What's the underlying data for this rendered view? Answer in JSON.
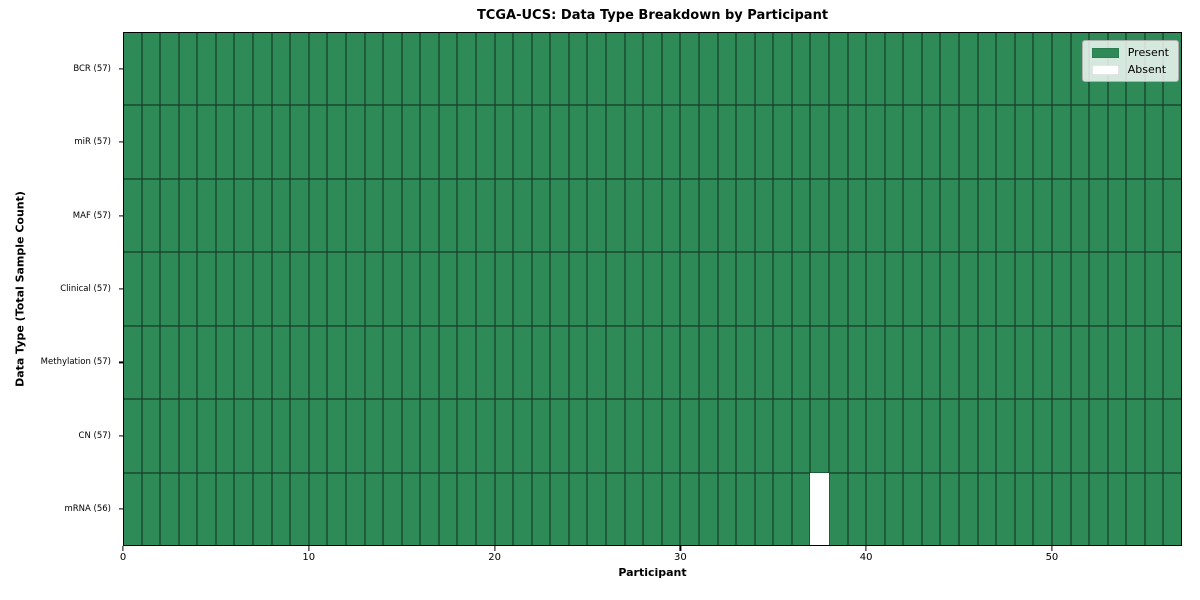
{
  "chart_data": {
    "type": "heatmap",
    "title": "TCGA-UCS: Data Type Breakdown by Participant",
    "xlabel": "Participant",
    "ylabel": "Data Type (Total Sample Count)",
    "n_participants": 57,
    "x_range": [
      0,
      57
    ],
    "x_ticks": [
      0,
      10,
      20,
      30,
      40,
      50
    ],
    "rows": [
      {
        "label": "BCR (57)",
        "data_type": "BCR",
        "total_samples": 57,
        "absent_participant_indices": []
      },
      {
        "label": "miR (57)",
        "data_type": "miR",
        "total_samples": 57,
        "absent_participant_indices": []
      },
      {
        "label": "MAF (57)",
        "data_type": "MAF",
        "total_samples": 57,
        "absent_participant_indices": []
      },
      {
        "label": "Clinical (57)",
        "data_type": "Clinical",
        "total_samples": 57,
        "absent_participant_indices": []
      },
      {
        "label": "Methylation (57)",
        "data_type": "Methylation",
        "total_samples": 57,
        "absent_participant_indices": []
      },
      {
        "label": "CN (57)",
        "data_type": "CN",
        "total_samples": 57,
        "absent_participant_indices": []
      },
      {
        "label": "mRNA (56)",
        "data_type": "mRNA",
        "total_samples": 56,
        "absent_participant_indices": [
          37
        ]
      }
    ],
    "legend": [
      {
        "label": "Present",
        "color": "#2e8b57"
      },
      {
        "label": "Absent",
        "color": "#ffffff"
      }
    ],
    "colors": {
      "present": "#2e8b57",
      "absent": "#ffffff",
      "cell_edge": "rgba(0,0,0,0.55)",
      "axis": "#000000"
    },
    "legend_position": "upper right",
    "grid": "cell-borders"
  }
}
